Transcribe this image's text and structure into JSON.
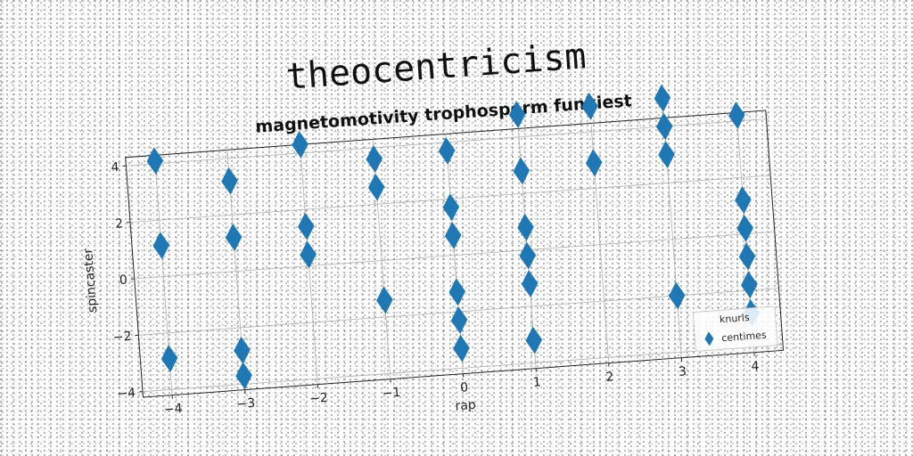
{
  "suptitle": "theocentricism",
  "chart_data": {
    "type": "scatter",
    "title": "magnetomotivity trophosperm funkiest",
    "xlabel": "rap",
    "ylabel": "spincaster",
    "xlim": [
      -4.4,
      4.4
    ],
    "ylim": [
      -4.2,
      4.3
    ],
    "xticks": [
      -4,
      -3,
      -2,
      -1,
      0,
      1,
      2,
      3,
      4
    ],
    "yticks": [
      -4,
      -2,
      0,
      2,
      4
    ],
    "grid": true,
    "marker": "thin-diamond",
    "color": "#1f77b4",
    "legend": {
      "placement": "lower right",
      "title": "knurls",
      "entries": [
        "centimes"
      ]
    },
    "series": [
      {
        "name": "centimes",
        "points": [
          [
            -4,
            4.1
          ],
          [
            -4,
            1.1
          ],
          [
            -4,
            -2.9
          ],
          [
            -3,
            3.2
          ],
          [
            -3,
            1.2
          ],
          [
            -3,
            -2.8
          ],
          [
            -3,
            -3.7
          ],
          [
            -2,
            4.3
          ],
          [
            -2,
            1.4
          ],
          [
            -2,
            0.4
          ],
          [
            -1,
            3.6
          ],
          [
            -1,
            2.6
          ],
          [
            -1,
            -1.4
          ],
          [
            0,
            3.7
          ],
          [
            0,
            1.7
          ],
          [
            0,
            0.7
          ],
          [
            0,
            -1.3
          ],
          [
            0,
            -2.3
          ],
          [
            0,
            -3.3
          ],
          [
            1,
            4.8
          ],
          [
            1,
            2.8
          ],
          [
            1,
            0.8
          ],
          [
            1,
            -0.2
          ],
          [
            1,
            -1.2
          ],
          [
            1,
            -3.2
          ],
          [
            2,
            4.9
          ],
          [
            2,
            2.9
          ],
          [
            3,
            5.0
          ],
          [
            3,
            4.0
          ],
          [
            3,
            3.0
          ],
          [
            3,
            -2.0
          ],
          [
            4,
            4.2
          ],
          [
            4,
            1.2
          ],
          [
            4,
            0.2
          ],
          [
            4,
            -0.8
          ],
          [
            4,
            -1.8
          ],
          [
            4,
            -2.8
          ]
        ]
      }
    ]
  }
}
